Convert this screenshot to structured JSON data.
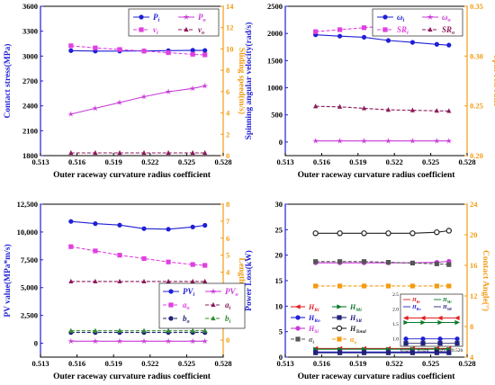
{
  "colors": {
    "blue": "#1f1fd6",
    "magenta": "#c83ad8",
    "pink": "#e040e0",
    "darkred": "#8b1a5a",
    "purple": "#7a2aa0",
    "navy": "#22227a",
    "green": "#2e8b2e",
    "orange": "#f39c12",
    "red": "#e02020",
    "darkgreen": "#0a7a2a",
    "black": "#222222",
    "gray": "#555555"
  },
  "chart_data": [
    {
      "type": "line",
      "xlabel": "Outer raceway curvature radius coefficient",
      "ylabel": "Contact stress(MPa)",
      "y2label": "Sliding speed(m/s)",
      "x_ticks": [
        "0.513",
        "0.516",
        "0.519",
        "0.522",
        "0.525",
        "0.528"
      ],
      "xlim": [
        0.513,
        0.528
      ],
      "ylim": [
        1800,
        3600
      ],
      "y_ticks": [
        "1800",
        "2100",
        "2400",
        "2700",
        "3000",
        "3300",
        "3600"
      ],
      "y2lim": [
        0,
        14
      ],
      "y2_ticks": [
        "0",
        "2",
        "4",
        "6",
        "8",
        "10",
        "12",
        "14"
      ],
      "x": [
        0.5155,
        0.5175,
        0.5195,
        0.5215,
        0.5235,
        0.5255,
        0.5265
      ],
      "series": [
        {
          "name": "P_i",
          "sub": "i",
          "axis": "left",
          "color": "blue",
          "marker": "circle",
          "dash": false,
          "values": [
            3065,
            3060,
            3060,
            3062,
            3065,
            3070,
            3068
          ]
        },
        {
          "name": "P_o",
          "sub": "o",
          "axis": "left",
          "color": "magenta",
          "marker": "star",
          "dash": false,
          "values": [
            2300,
            2370,
            2440,
            2510,
            2570,
            2610,
            2640
          ]
        },
        {
          "name": "v_i",
          "sub": "i",
          "axis": "right",
          "color": "pink",
          "marker": "square",
          "dash": true,
          "values": [
            10.3,
            10.1,
            9.95,
            9.8,
            9.65,
            9.5,
            9.45
          ]
        },
        {
          "name": "v_o",
          "sub": "o",
          "axis": "right",
          "color": "darkred",
          "marker": "triangle",
          "dash": true,
          "values": [
            0.25,
            0.25,
            0.25,
            0.25,
            0.25,
            0.25,
            0.25
          ]
        }
      ],
      "legend": {
        "placement": "top-right",
        "entries": [
          {
            "base": "P",
            "sub": "i",
            "series": 0
          },
          {
            "base": "P",
            "sub": "o",
            "series": 1
          },
          {
            "base": "v",
            "sub": "i",
            "series": 2
          },
          {
            "base": "v",
            "sub": "o",
            "series": 3
          }
        ]
      }
    },
    {
      "type": "line",
      "xlabel": "Outer raceway curvature radius coefficient",
      "ylabel": "Spinning angular velocity(rad/s)",
      "y2label": "Spin-roll ratio",
      "x_ticks": [
        "0.513",
        "0.516",
        "0.519",
        "0.522",
        "0.525",
        "0.528"
      ],
      "xlim": [
        0.513,
        0.528
      ],
      "ylim": [
        -250,
        2500
      ],
      "y_ticks": [
        "0",
        "500",
        "1000",
        "1500",
        "2000",
        "2500"
      ],
      "y2lim": [
        0.2,
        0.35
      ],
      "y2_ticks": [
        "0.20",
        "0.25",
        "0.30",
        "0.35"
      ],
      "x": [
        0.5155,
        0.5175,
        0.5195,
        0.5215,
        0.5235,
        0.5255,
        0.5265
      ],
      "series": [
        {
          "name": "ω_i",
          "sub": "i",
          "axis": "left",
          "color": "blue",
          "marker": "circle",
          "dash": false,
          "values": [
            1975,
            1950,
            1930,
            1870,
            1835,
            1800,
            1785
          ]
        },
        {
          "name": "ω_o",
          "sub": "o",
          "axis": "left",
          "color": "magenta",
          "marker": "star",
          "dash": false,
          "values": [
            20,
            20,
            20,
            20,
            20,
            20,
            20
          ]
        },
        {
          "name": "SR_i",
          "sub": "i",
          "axis": "right",
          "color": "pink",
          "marker": "square",
          "dash": true,
          "values": [
            0.3245,
            0.3265,
            0.3285,
            0.3305,
            0.333,
            0.3355,
            0.337
          ]
        },
        {
          "name": "SR_o",
          "sub": "o",
          "axis": "right",
          "color": "darkred",
          "marker": "triangle",
          "dash": true,
          "values": [
            0.2495,
            0.249,
            0.2475,
            0.246,
            0.2455,
            0.245,
            0.2448
          ]
        }
      ],
      "legend": {
        "placement": "top-right",
        "entries": [
          {
            "base": "ω",
            "sub": "i",
            "series": 0
          },
          {
            "base": "ω",
            "sub": "o",
            "series": 1
          },
          {
            "base": "SR",
            "sub": "i",
            "series": 2
          },
          {
            "base": "SR",
            "sub": "o",
            "series": 3
          }
        ]
      }
    },
    {
      "type": "line",
      "xlabel": "Outer raceway curvature radius coefficient",
      "ylabel": "PV value(MPa*m/s)",
      "y2label": "Length(mm)",
      "x_ticks": [
        "0.513",
        "0.516",
        "0.519",
        "0.522",
        "0.525",
        "0.528"
      ],
      "xlim": [
        0.513,
        0.528
      ],
      "ylim": [
        -1250,
        12500
      ],
      "y_ticks": [
        "0",
        "2,500",
        "5,000",
        "7,500",
        "10,000",
        "12,500"
      ],
      "y2lim": [
        -1,
        8
      ],
      "y2_ticks": [
        "0",
        "1",
        "2",
        "3",
        "4",
        "5",
        "6",
        "7",
        "8"
      ],
      "x": [
        0.5155,
        0.5175,
        0.5195,
        0.5215,
        0.5235,
        0.5255,
        0.5265
      ],
      "series": [
        {
          "name": "PV_i",
          "sub": "i",
          "axis": "left",
          "color": "blue",
          "marker": "circle",
          "dash": false,
          "values": [
            10950,
            10750,
            10620,
            10300,
            10250,
            10450,
            10600
          ]
        },
        {
          "name": "PV_o",
          "sub": "o",
          "axis": "left",
          "color": "magenta",
          "marker": "star",
          "dash": false,
          "values": [
            180,
            180,
            180,
            180,
            180,
            180,
            180
          ]
        },
        {
          "name": "a_o",
          "sub": "o",
          "axis": "right",
          "color": "pink",
          "marker": "square",
          "dash": true,
          "values": [
            5.5,
            5.25,
            5.0,
            4.8,
            4.6,
            4.45,
            4.4
          ]
        },
        {
          "name": "a_i",
          "sub": "i",
          "axis": "right",
          "color": "darkred",
          "marker": "triangle",
          "dash": true,
          "values": [
            3.45,
            3.45,
            3.45,
            3.45,
            3.45,
            3.45,
            3.45
          ]
        },
        {
          "name": "b_o",
          "sub": "o",
          "axis": "right",
          "color": "navy",
          "marker": "circle",
          "dash": true,
          "values": [
            0.45,
            0.45,
            0.45,
            0.45,
            0.45,
            0.45,
            0.45
          ]
        },
        {
          "name": "b_i",
          "sub": "i",
          "axis": "right",
          "color": "green",
          "marker": "triangle",
          "dash": true,
          "values": [
            0.55,
            0.55,
            0.55,
            0.55,
            0.55,
            0.55,
            0.55
          ]
        }
      ],
      "legend": {
        "placement": "center-right",
        "entries": [
          {
            "base": "PV",
            "sub": "i",
            "series": 0
          },
          {
            "base": "PV",
            "sub": "o",
            "series": 1
          },
          {
            "base": "a",
            "sub": "o",
            "series": 2
          },
          {
            "base": "a",
            "sub": "i",
            "series": 3
          },
          {
            "base": "b",
            "sub": "o",
            "series": 4
          },
          {
            "base": "b",
            "sub": "i",
            "series": 5
          }
        ]
      }
    },
    {
      "type": "line",
      "xlabel": "Outer raceway curvature radius coefficient",
      "ylabel": "Power Loss(kW)",
      "y2label": "Contact Angle(°)",
      "x_ticks": [
        "0.513",
        "0.516",
        "0.519",
        "0.522",
        "0.525",
        "0.528"
      ],
      "xlim": [
        0.513,
        0.528
      ],
      "ylim": [
        0,
        30
      ],
      "y_ticks": [
        "0",
        "5",
        "10",
        "15",
        "20",
        "25",
        "30"
      ],
      "y2lim": [
        4,
        24
      ],
      "y2_ticks": [
        "4",
        "8",
        "12",
        "16",
        "20",
        "24"
      ],
      "x": [
        0.5155,
        0.5175,
        0.5195,
        0.5215,
        0.5235,
        0.5255,
        0.5265
      ],
      "series": [
        {
          "name": "H_Ri",
          "sub": "Ri",
          "axis": "left",
          "color": "red",
          "marker": "tri-left",
          "dash": false,
          "values": [
            1.7,
            1.7,
            1.7,
            1.7,
            1.7,
            1.7,
            1.7
          ]
        },
        {
          "name": "H_Mi",
          "sub": "Mi",
          "axis": "left",
          "color": "darkgreen",
          "marker": "tri-right",
          "dash": false,
          "values": [
            1.55,
            1.55,
            1.55,
            1.55,
            1.55,
            1.55,
            1.55
          ]
        },
        {
          "name": "H_Ro",
          "sub": "Ro",
          "axis": "left",
          "color": "blue",
          "marker": "circle",
          "dash": false,
          "values": [
            1.0,
            1.0,
            1.0,
            1.0,
            1.0,
            1.0,
            1.0
          ]
        },
        {
          "name": "H_SR",
          "sub": "SR",
          "axis": "left",
          "color": "navy",
          "marker": "square",
          "dash": false,
          "values": [
            0.85,
            0.85,
            0.85,
            0.85,
            0.85,
            0.85,
            0.85
          ]
        },
        {
          "name": "H_Si",
          "sub": "Si",
          "axis": "left",
          "color": "magenta",
          "marker": "circle",
          "dash": false,
          "values": [
            18.5,
            18.5,
            18.5,
            18.5,
            18.5,
            18.6,
            18.8
          ]
        },
        {
          "name": "H_Total",
          "sub": "Total",
          "axis": "left",
          "color": "black",
          "marker": "circle-open",
          "dash": false,
          "values": [
            24.3,
            24.3,
            24.3,
            24.3,
            24.3,
            24.5,
            24.8
          ]
        },
        {
          "name": "α_i",
          "sub": "i",
          "axis": "right",
          "color": "gray",
          "marker": "square",
          "dash": true,
          "values": [
            16.5,
            16.5,
            16.5,
            16.4,
            16.3,
            16.2,
            16.1
          ]
        },
        {
          "name": "α_o",
          "sub": "o",
          "axis": "right",
          "color": "orange",
          "marker": "square",
          "dash": true,
          "values": [
            13.3,
            13.3,
            13.3,
            13.3,
            13.3,
            13.3,
            13.3
          ]
        }
      ],
      "legend": {
        "placement": "bottom-left",
        "entries": [
          {
            "base": "H",
            "sub": "Ri",
            "series": 0
          },
          {
            "base": "H",
            "sub": "Mi",
            "series": 1
          },
          {
            "base": "H",
            "sub": "Ro",
            "series": 2
          },
          {
            "base": "H",
            "sub": "SR",
            "series": 3
          },
          {
            "base": "H",
            "sub": "Si",
            "series": 4
          },
          {
            "base": "H",
            "sub": "Total",
            "series": 5
          },
          {
            "base": "α",
            "sub": "i",
            "series": 6
          },
          {
            "base": "α",
            "sub": "o",
            "series": 7
          }
        ]
      },
      "inset": {
        "x_ticks": [
          "0.521",
          "0.524",
          "0.525",
          "0.526"
        ],
        "y_ticks": [
          "1.0",
          "1.5",
          "2.0",
          "2.5"
        ],
        "ylim": [
          0.75,
          2.5
        ],
        "legend": [
          {
            "base": "H",
            "sub": "Ri",
            "series": 0
          },
          {
            "base": "H",
            "sub": "Mi",
            "series": 1
          },
          {
            "base": "H",
            "sub": "Ro",
            "series": 2
          },
          {
            "base": "H",
            "sub": "SR",
            "series": 3
          }
        ]
      }
    }
  ]
}
